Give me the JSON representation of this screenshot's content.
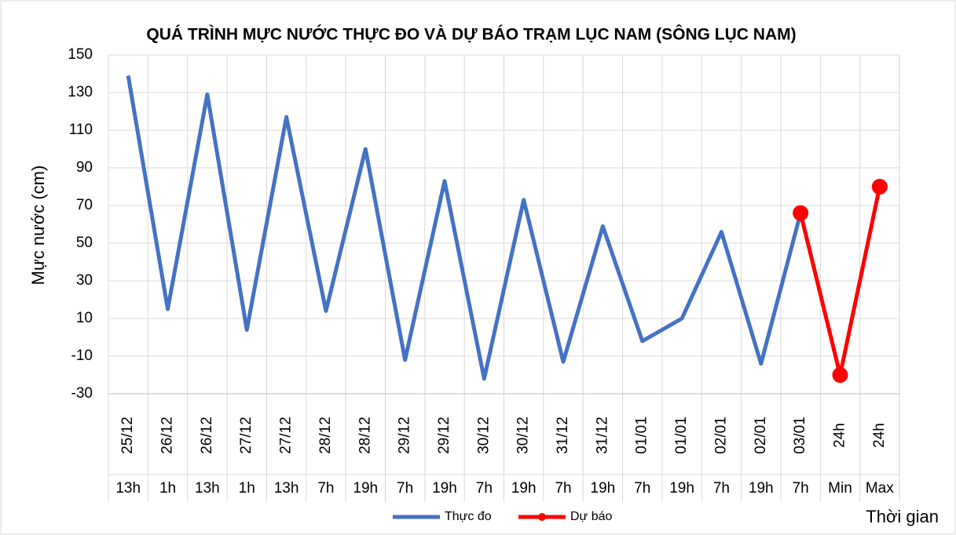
{
  "chart_data": {
    "type": "line",
    "title": "QUÁ TRÌNH MỰC NƯỚC THỰC ĐO VÀ DỰ BÁO TRẠM LỤC NAM (SÔNG LỤC NAM)",
    "y_label": "Mực nước (cm)",
    "x_label": "Thời gian",
    "categories": [
      [
        "25/12",
        "13h"
      ],
      [
        "26/12",
        "1h"
      ],
      [
        "26/12",
        "13h"
      ],
      [
        "27/12",
        "1h"
      ],
      [
        "27/12",
        "13h"
      ],
      [
        "28/12",
        "7h"
      ],
      [
        "28/12",
        "19h"
      ],
      [
        "29/12",
        "7h"
      ],
      [
        "29/12",
        "19h"
      ],
      [
        "30/12",
        "7h"
      ],
      [
        "30/12",
        "19h"
      ],
      [
        "31/12",
        "7h"
      ],
      [
        "31/12",
        "19h"
      ],
      [
        "01/01",
        "7h"
      ],
      [
        "01/01",
        "19h"
      ],
      [
        "02/01",
        "7h"
      ],
      [
        "02/01",
        "19h"
      ],
      [
        "03/01",
        "7h"
      ],
      [
        "24h",
        "Min"
      ],
      [
        "24h",
        "Max"
      ]
    ],
    "series": [
      {
        "name": "Thực đo",
        "color": "#4472c4",
        "marker": false,
        "values": [
          139,
          15,
          129,
          4,
          117,
          14,
          100,
          -12,
          83,
          -22,
          73,
          -13,
          59,
          -2,
          10,
          56,
          -14,
          66,
          null,
          null
        ]
      },
      {
        "name": "Dự báo",
        "color": "#ff0000",
        "marker": true,
        "values": [
          null,
          null,
          null,
          null,
          null,
          null,
          null,
          null,
          null,
          null,
          null,
          null,
          null,
          null,
          null,
          null,
          null,
          66,
          -20,
          80
        ]
      }
    ],
    "ylim": [
      -30,
      150
    ],
    "yticks": [
      -30,
      -10,
      10,
      30,
      50,
      70,
      90,
      110,
      130,
      150
    ],
    "grid": true,
    "legend": "bottom"
  }
}
